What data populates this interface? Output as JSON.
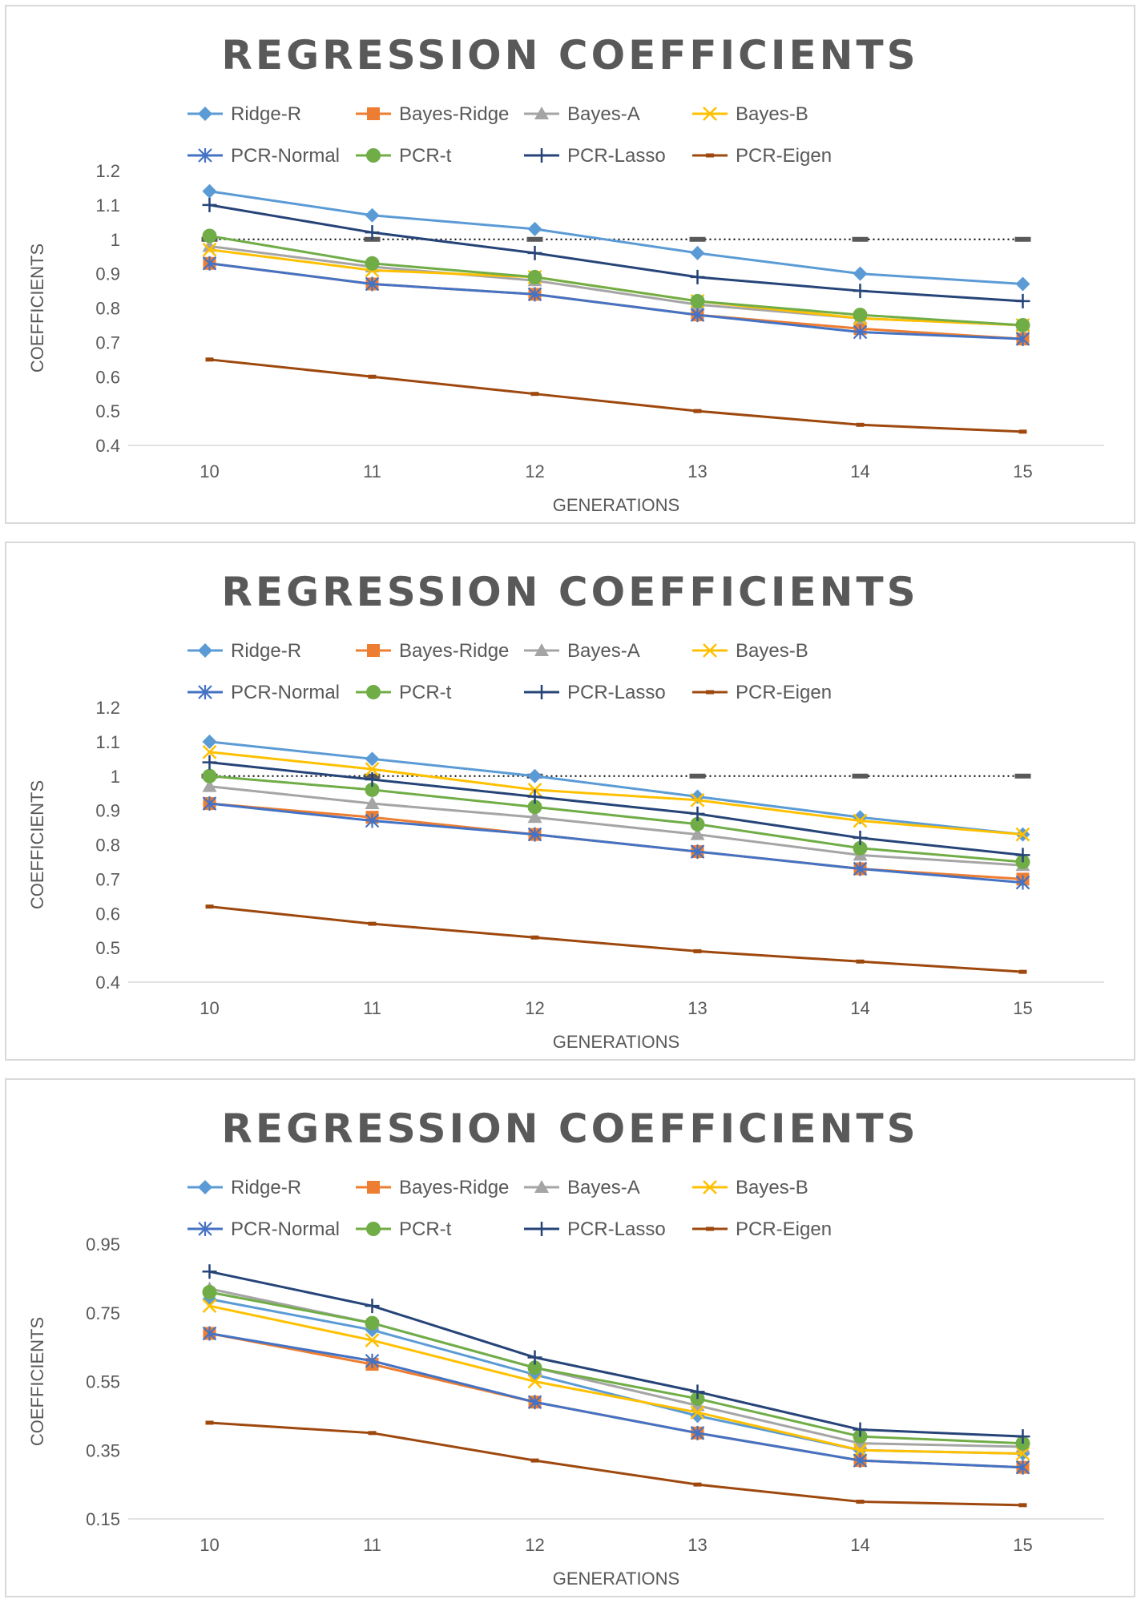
{
  "chart_data": [
    {
      "type": "line",
      "title": "REGRESSION COEFFICIENTS",
      "xlabel": "GENERATIONS",
      "ylabel": "COEFFICIENTS",
      "categories": [
        "10",
        "11",
        "12",
        "13",
        "14",
        "15"
      ],
      "ylim": [
        0.4,
        1.2
      ],
      "yticks": [
        "0.4",
        "0.5",
        "0.6",
        "0.7",
        "0.8",
        "0.9",
        "1",
        "1.1",
        "1.2"
      ],
      "reference_line": 1.0,
      "legend_position": "top",
      "series": [
        {
          "name": "Ridge-R",
          "values": [
            1.14,
            1.07,
            1.03,
            0.96,
            0.9,
            0.87
          ]
        },
        {
          "name": "Bayes-Ridge",
          "values": [
            0.93,
            0.87,
            0.84,
            0.78,
            0.74,
            0.71
          ]
        },
        {
          "name": "Bayes-A",
          "values": [
            0.98,
            0.92,
            0.88,
            0.81,
            0.77,
            0.75
          ]
        },
        {
          "name": "Bayes-B",
          "values": [
            0.97,
            0.91,
            0.89,
            0.82,
            0.77,
            0.75
          ]
        },
        {
          "name": "PCR-Normal",
          "values": [
            0.93,
            0.87,
            0.84,
            0.78,
            0.73,
            0.71
          ]
        },
        {
          "name": "PCR-t",
          "values": [
            1.01,
            0.93,
            0.89,
            0.82,
            0.78,
            0.75
          ]
        },
        {
          "name": "PCR-Lasso",
          "values": [
            1.1,
            1.02,
            0.96,
            0.89,
            0.85,
            0.82
          ]
        },
        {
          "name": "PCR-Eigen",
          "values": [
            0.65,
            0.6,
            0.55,
            0.5,
            0.46,
            0.44
          ]
        }
      ]
    },
    {
      "type": "line",
      "title": "REGRESSION COEFFICIENTS",
      "xlabel": "GENERATIONS",
      "ylabel": "COEFFICIENTS",
      "categories": [
        "10",
        "11",
        "12",
        "13",
        "14",
        "15"
      ],
      "ylim": [
        0.4,
        1.2
      ],
      "yticks": [
        "0.4",
        "0.5",
        "0.6",
        "0.7",
        "0.8",
        "0.9",
        "1",
        "1.1",
        "1.2"
      ],
      "reference_line": 1.0,
      "legend_position": "top",
      "series": [
        {
          "name": "Ridge-R",
          "values": [
            1.1,
            1.05,
            1.0,
            0.94,
            0.88,
            0.83
          ]
        },
        {
          "name": "Bayes-Ridge",
          "values": [
            0.92,
            0.88,
            0.83,
            0.78,
            0.73,
            0.7
          ]
        },
        {
          "name": "Bayes-A",
          "values": [
            0.97,
            0.92,
            0.88,
            0.83,
            0.77,
            0.74
          ]
        },
        {
          "name": "Bayes-B",
          "values": [
            1.07,
            1.02,
            0.96,
            0.93,
            0.87,
            0.83
          ]
        },
        {
          "name": "PCR-Normal",
          "values": [
            0.92,
            0.87,
            0.83,
            0.78,
            0.73,
            0.69
          ]
        },
        {
          "name": "PCR-t",
          "values": [
            1.0,
            0.96,
            0.91,
            0.86,
            0.79,
            0.75
          ]
        },
        {
          "name": "PCR-Lasso",
          "values": [
            1.04,
            0.99,
            0.94,
            0.89,
            0.82,
            0.77
          ]
        },
        {
          "name": "PCR-Eigen",
          "values": [
            0.62,
            0.57,
            0.53,
            0.49,
            0.46,
            0.43
          ]
        }
      ]
    },
    {
      "type": "line",
      "title": "REGRESSION COEFFICIENTS",
      "xlabel": "GENERATIONS",
      "ylabel": "COEFFICIENTS",
      "categories": [
        "10",
        "11",
        "12",
        "13",
        "14",
        "15"
      ],
      "ylim": [
        0.15,
        0.95
      ],
      "yticks": [
        "0.15",
        "0.35",
        "0.55",
        "0.75",
        "0.95"
      ],
      "reference_line": null,
      "legend_position": "top",
      "series": [
        {
          "name": "Ridge-R",
          "values": [
            0.79,
            0.7,
            0.57,
            0.45,
            0.35,
            0.34
          ]
        },
        {
          "name": "Bayes-Ridge",
          "values": [
            0.69,
            0.6,
            0.49,
            0.4,
            0.32,
            0.3
          ]
        },
        {
          "name": "Bayes-A",
          "values": [
            0.82,
            0.72,
            0.59,
            0.48,
            0.37,
            0.36
          ]
        },
        {
          "name": "Bayes-B",
          "values": [
            0.77,
            0.67,
            0.55,
            0.46,
            0.35,
            0.34
          ]
        },
        {
          "name": "PCR-Normal",
          "values": [
            0.69,
            0.61,
            0.49,
            0.4,
            0.32,
            0.3
          ]
        },
        {
          "name": "PCR-t",
          "values": [
            0.81,
            0.72,
            0.59,
            0.5,
            0.39,
            0.37
          ]
        },
        {
          "name": "PCR-Lasso",
          "values": [
            0.87,
            0.77,
            0.62,
            0.52,
            0.41,
            0.39
          ]
        },
        {
          "name": "PCR-Eigen",
          "values": [
            0.43,
            0.4,
            0.32,
            0.25,
            0.2,
            0.19
          ]
        }
      ]
    }
  ],
  "series_colors": {
    "Ridge-R": "#5b9bd5",
    "Bayes-Ridge": "#ed7d31",
    "Bayes-A": "#a5a5a5",
    "Bayes-B": "#ffc000",
    "PCR-Normal": "#4472c4",
    "PCR-t": "#70ad47",
    "PCR-Lasso": "#264478",
    "PCR-Eigen": "#9e480e"
  },
  "series_markers": {
    "Ridge-R": "diamond",
    "Bayes-Ridge": "square",
    "Bayes-A": "triangle",
    "Bayes-B": "x",
    "PCR-Normal": "star",
    "PCR-t": "circle",
    "PCR-Lasso": "plus",
    "PCR-Eigen": "dash"
  }
}
